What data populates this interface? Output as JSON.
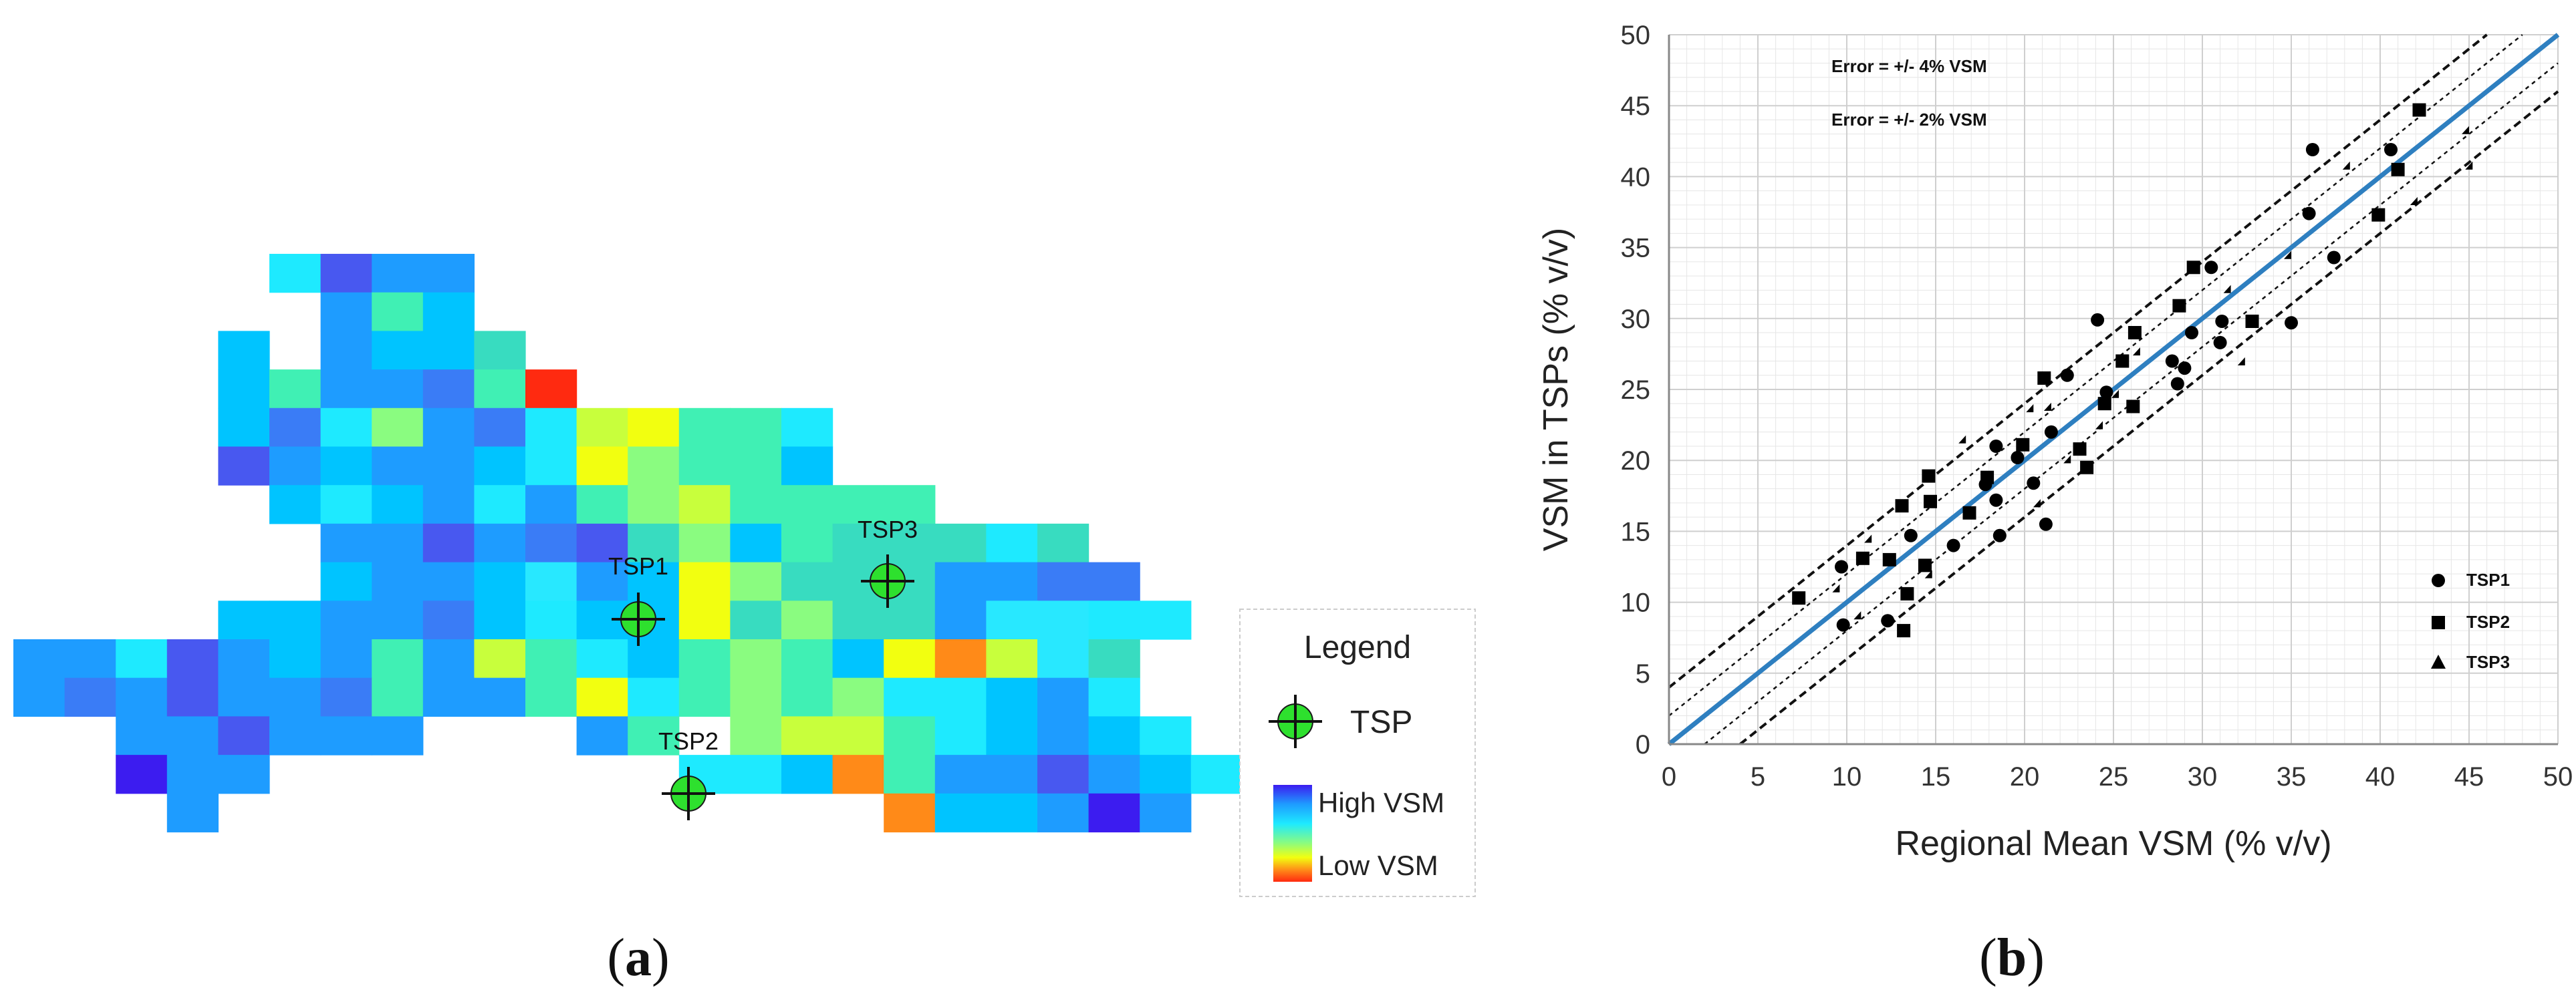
{
  "panel_a": {
    "label_open": "(",
    "label_letter": "a",
    "label_close": ")",
    "legend_title": "Legend",
    "legend_tsp": "TSP",
    "legend_high": "High VSM",
    "legend_low": "Low VSM",
    "stations": [
      "TSP1",
      "TSP2",
      "TSP3"
    ],
    "palette": {
      "R": "#ff2a10",
      "O": "#ff8a18",
      "Y": "#f2ff10",
      "L": "#c8ff3c",
      "G": "#8afc80",
      "T": "#40f0b4",
      "A": "#38dcc0",
      "C": "#1eeaff",
      "S": "#00c4ff",
      "B": "#1e9cff",
      "D": "#3a7cf6",
      "I": "#4858f0",
      "P": "#3c1cf0",
      "M": "#28e8ff",
      "K": "#50e0a0"
    },
    "tsp_color": "#2ee02e",
    "grid_rows": [
      "     CIBB",
      "      BTS",
      "    S BSSA",
      "    STBBDTR",
      "    SDCGBDCLYTTC",
      "    IBSBBSCYGTTS",
      "     SCSBCBTGLTTTT",
      "      BBIBDIAGSTAAACA",
      "      SBBSMBSYGAAABBDD",
      "    SSBBDSCSSYAGAABMMCC",
      "BBCIBSBTBLTCSTGTSYOLMA",
      "BDBIBBDTBBTYCTGTGCCSBC",
      "  BBIBBB   BT GLLTCSBSC",
      "  PBB        CCSOTBBIBSC",
      "   B             OSSBPB"
    ]
  },
  "panel_b": {
    "label_open": "(",
    "label_letter": "b",
    "label_close": ")",
    "chart_data": {
      "type": "scatter",
      "xlabel": "Regional Mean VSM (% v/v)",
      "ylabel": "VSM in TSPs (% v/v)",
      "xlim": [
        0,
        50
      ],
      "ylim": [
        0,
        50
      ],
      "ticks": [
        0,
        5,
        10,
        15,
        20,
        25,
        30,
        35,
        40,
        45,
        50
      ],
      "grid": true,
      "annotations": [
        "Error = +/- 4% VSM",
        "Error = +/- 2% VSM"
      ],
      "reference_line": {
        "name": "1:1",
        "color": "#2e7fc0"
      },
      "error_bands": [
        2,
        4
      ],
      "legend_position": "bottom-right",
      "series": [
        {
          "name": "TSP1",
          "marker": "circle",
          "points": [
            [
              9.7,
              12.5
            ],
            [
              9.8,
              8.4
            ],
            [
              12.3,
              8.7
            ],
            [
              13.6,
              14.7
            ],
            [
              16,
              14
            ],
            [
              17.8,
              18.3
            ],
            [
              18.4,
              17.2
            ],
            [
              18.4,
              21
            ],
            [
              18.6,
              14.7
            ],
            [
              19.6,
              20.2
            ],
            [
              20.5,
              18.4
            ],
            [
              21.2,
              15.5
            ],
            [
              21.5,
              22
            ],
            [
              22.4,
              26
            ],
            [
              24.1,
              29.9
            ],
            [
              24.6,
              24.8
            ],
            [
              28.3,
              27
            ],
            [
              28.6,
              25.4
            ],
            [
              29,
              26.5
            ],
            [
              29.4,
              29
            ],
            [
              30.5,
              33.6
            ],
            [
              31,
              28.3
            ],
            [
              31.1,
              29.8
            ],
            [
              35,
              29.7
            ],
            [
              36,
              37.4
            ],
            [
              36.2,
              41.9
            ],
            [
              37.4,
              34.3
            ],
            [
              40.6,
              41.9
            ]
          ]
        },
        {
          "name": "TSP2",
          "marker": "square",
          "points": [
            [
              7.3,
              10.3
            ],
            [
              10.9,
              13.1
            ],
            [
              12.4,
              13
            ],
            [
              13.1,
              16.8
            ],
            [
              13.2,
              8
            ],
            [
              13.4,
              10.6
            ],
            [
              14.4,
              12.6
            ],
            [
              14.6,
              18.9
            ],
            [
              14.7,
              17.1
            ],
            [
              16.9,
              16.3
            ],
            [
              17.9,
              18.8
            ],
            [
              19.9,
              21.1
            ],
            [
              21.1,
              25.8
            ],
            [
              23.1,
              20.8
            ],
            [
              23.5,
              19.5
            ],
            [
              24.5,
              24
            ],
            [
              25.5,
              27
            ],
            [
              26.1,
              23.8
            ],
            [
              26.2,
              29
            ],
            [
              28.7,
              30.9
            ],
            [
              29.5,
              33.6
            ],
            [
              32.8,
              29.8
            ],
            [
              39.9,
              37.3
            ],
            [
              41,
              40.5
            ],
            [
              42.2,
              44.7
            ]
          ]
        },
        {
          "name": "TSP3",
          "marker": "triangle",
          "points": [
            [
              9.6,
              10.7
            ],
            [
              10.8,
              8.8
            ],
            [
              11.4,
              14.2
            ],
            [
              14.8,
              11.7
            ],
            [
              16.7,
              21.2
            ],
            [
              20.5,
              23.4
            ],
            [
              20.9,
              16.7
            ],
            [
              21.5,
              23.5
            ],
            [
              22.6,
              19.8
            ],
            [
              24.4,
              22.2
            ],
            [
              25.3,
              24.4
            ],
            [
              26.5,
              27.4
            ],
            [
              31.6,
              31.8
            ],
            [
              32.4,
              26.7
            ],
            [
              35,
              34.2
            ],
            [
              38.3,
              40.5
            ],
            [
              42.1,
              38
            ],
            [
              45,
              43
            ],
            [
              45.2,
              40.5
            ]
          ]
        }
      ]
    }
  }
}
